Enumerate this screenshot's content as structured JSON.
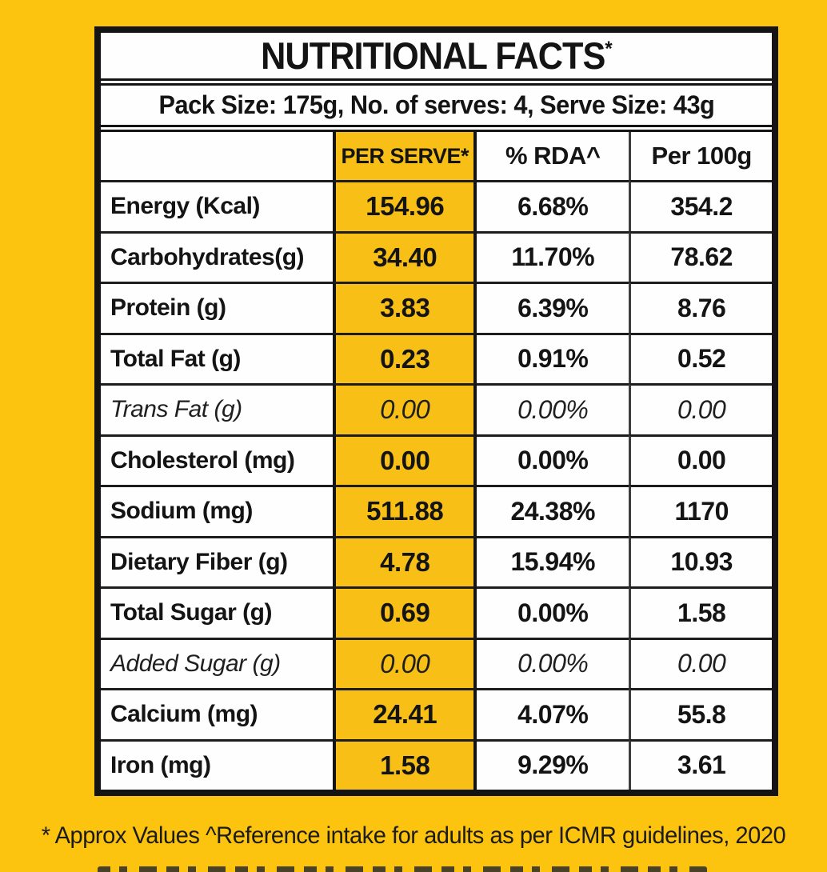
{
  "colors": {
    "background": "#fcc30f",
    "highlight_column": "#f8c016",
    "border": "#141414",
    "text": "#141414",
    "cell_white": "#fefefe"
  },
  "table": {
    "title": "NUTRITIONAL FACTS",
    "title_superscript": "*",
    "pack_info": "Pack Size: 175g, No. of serves: 4, Serve Size: 43g",
    "columns": [
      "",
      "PER SERVE*",
      "% RDA^",
      "Per 100g"
    ],
    "rows": [
      {
        "label": "Energy (Kcal)",
        "per_serve": "154.96",
        "rda": "6.68%",
        "per_100g": "354.2",
        "italic": false
      },
      {
        "label": "Carbohydrates(g)",
        "per_serve": "34.40",
        "rda": "11.70%",
        "per_100g": "78.62",
        "italic": false
      },
      {
        "label": "Protein (g)",
        "per_serve": "3.83",
        "rda": "6.39%",
        "per_100g": "8.76",
        "italic": false
      },
      {
        "label": "Total Fat (g)",
        "per_serve": "0.23",
        "rda": "0.91%",
        "per_100g": "0.52",
        "italic": false
      },
      {
        "label": "Trans Fat (g)",
        "per_serve": "0.00",
        "rda": "0.00%",
        "per_100g": "0.00",
        "italic": true
      },
      {
        "label": "Cholesterol (mg)",
        "per_serve": "0.00",
        "rda": "0.00%",
        "per_100g": "0.00",
        "italic": false
      },
      {
        "label": "Sodium (mg)",
        "per_serve": "511.88",
        "rda": "24.38%",
        "per_100g": "1170",
        "italic": false
      },
      {
        "label": "Dietary Fiber (g)",
        "per_serve": "4.78",
        "rda": "15.94%",
        "per_100g": "10.93",
        "italic": false
      },
      {
        "label": "Total Sugar (g)",
        "per_serve": "0.69",
        "rda": "0.00%",
        "per_100g": "1.58",
        "italic": false
      },
      {
        "label": "Added Sugar (g)",
        "per_serve": "0.00",
        "rda": "0.00%",
        "per_100g": "0.00",
        "italic": true
      },
      {
        "label": "Calcium (mg)",
        "per_serve": "24.41",
        "rda": "4.07%",
        "per_100g": "55.8",
        "italic": false
      },
      {
        "label": "Iron (mg)",
        "per_serve": "1.58",
        "rda": "9.29%",
        "per_100g": "3.61",
        "italic": false
      }
    ]
  },
  "footnote": "* Approx Values ^Reference intake for adults as per ICMR guidelines, 2020"
}
